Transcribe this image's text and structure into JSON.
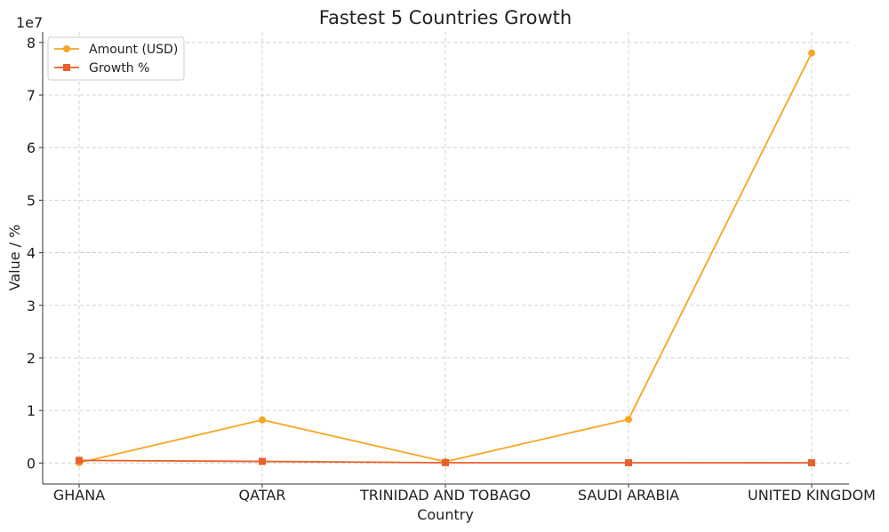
{
  "chart_data": {
    "type": "line",
    "title": "Fastest 5 Countries Growth",
    "xlabel": "Country",
    "ylabel": "Value / %",
    "y_offset_label": "1e7",
    "categories": [
      "GHANA",
      "QATAR",
      "TRINIDAD AND TOBAGO",
      "SAUDI ARABIA",
      "UNITED KINGDOM"
    ],
    "y_ticks": [
      "0",
      "1",
      "2",
      "3",
      "4",
      "5",
      "6",
      "7",
      "8"
    ],
    "y_scale": 10000000,
    "ylim": [
      -4000000,
      82000000
    ],
    "grid": true,
    "legend_position": "top-left",
    "series": [
      {
        "name": "Amount (USD)",
        "marker": "circle",
        "color": "#f5a623",
        "values": [
          50000,
          8200000,
          250000,
          8300000,
          78000000
        ]
      },
      {
        "name": "Growth %",
        "marker": "square",
        "color": "#e8612c",
        "values": [
          500000,
          300000,
          60000,
          60000,
          40000
        ]
      }
    ]
  }
}
